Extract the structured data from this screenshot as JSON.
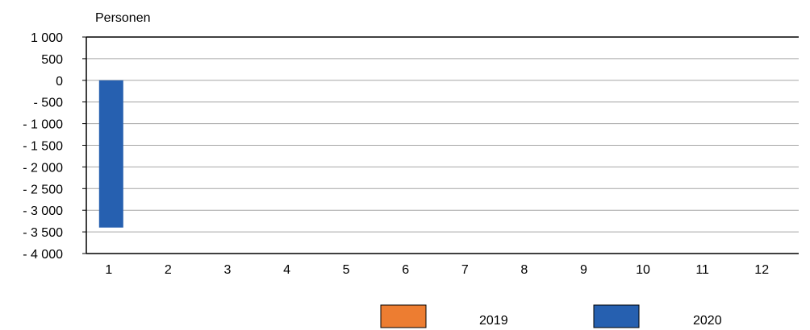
{
  "chart_data": {
    "type": "bar",
    "ylabel": "Personen",
    "xlabel": "",
    "categories": [
      "1",
      "2",
      "3",
      "4",
      "5",
      "6",
      "7",
      "8",
      "9",
      "10",
      "11",
      "12"
    ],
    "y_ticks": [
      "1 000",
      "500",
      "0",
      "- 500",
      "- 1 000",
      "- 1 500",
      "- 2 000",
      "- 2 500",
      "- 3 000",
      "- 3 500",
      "- 4 000"
    ],
    "ylim": [
      -4000,
      1000
    ],
    "grid": true,
    "legend_position": "bottom",
    "series": [
      {
        "name": "2019",
        "color": "#ED7D31",
        "values": [
          null,
          null,
          null,
          null,
          null,
          null,
          null,
          null,
          null,
          null,
          null,
          null
        ]
      },
      {
        "name": "2020",
        "color": "#2660B0",
        "values": [
          -3400,
          null,
          null,
          null,
          null,
          null,
          null,
          null,
          null,
          null,
          null,
          null
        ]
      }
    ]
  }
}
